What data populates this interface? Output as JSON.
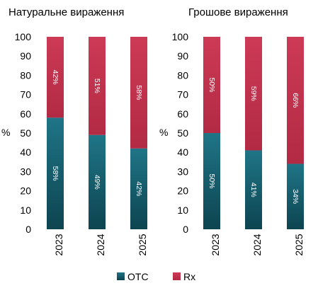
{
  "legend": [
    {
      "label": "OTC",
      "color": "#1e6f80"
    },
    {
      "label": "Rx",
      "color": "#c8334f"
    }
  ],
  "chart_data": [
    {
      "type": "bar",
      "stacked": true,
      "title": "Натуральне вираження",
      "ylabel": "%",
      "ylim": [
        0,
        100
      ],
      "yticks": [
        0,
        10,
        20,
        30,
        40,
        50,
        60,
        70,
        80,
        90,
        100
      ],
      "categories": [
        "2023",
        "2024",
        "2025"
      ],
      "series": [
        {
          "name": "OTC",
          "values": [
            58,
            49,
            42
          ],
          "labels": [
            "58%",
            "49%",
            "42%"
          ]
        },
        {
          "name": "Rx",
          "values": [
            42,
            51,
            58
          ],
          "labels": [
            "42%",
            "51%",
            "58%"
          ]
        }
      ]
    },
    {
      "type": "bar",
      "stacked": true,
      "title": "Грошове вираження",
      "ylabel": "%",
      "ylim": [
        0,
        100
      ],
      "yticks": [
        0,
        10,
        20,
        30,
        40,
        50,
        60,
        70,
        80,
        90,
        100
      ],
      "categories": [
        "2023",
        "2024",
        "2025"
      ],
      "series": [
        {
          "name": "OTC",
          "values": [
            50,
            41,
            34
          ],
          "labels": [
            "50%",
            "41%",
            "34%"
          ]
        },
        {
          "name": "Rx",
          "values": [
            50,
            59,
            66
          ],
          "labels": [
            "50%",
            "59%",
            "66%"
          ]
        }
      ]
    }
  ]
}
